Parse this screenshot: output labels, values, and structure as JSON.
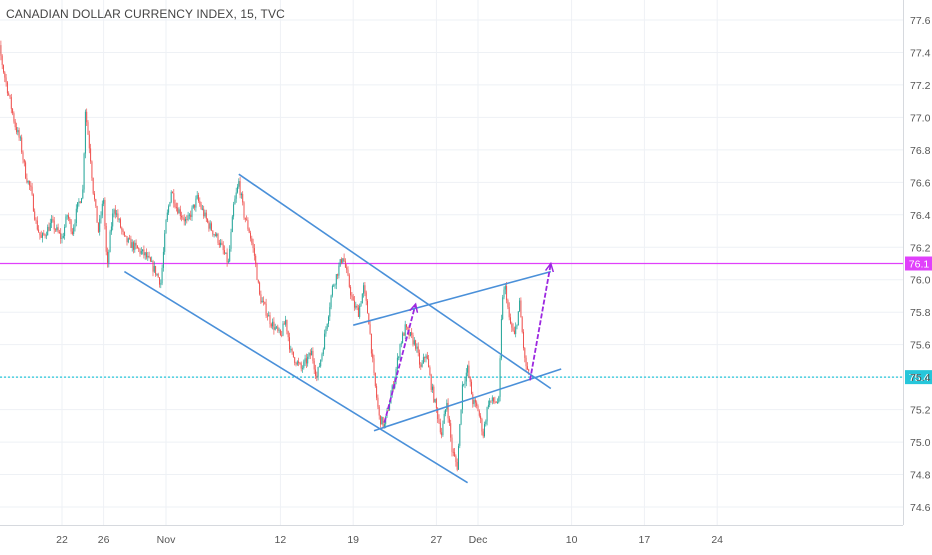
{
  "chart_data": {
    "type": "candlestick",
    "title": "CANADIAN DOLLAR CURRENCY INDEX, 15, TVC",
    "xlabel": "",
    "ylabel": "",
    "ylim": [
      74.4,
      77.7
    ],
    "grid": true,
    "x_ticks": [
      {
        "label": "22",
        "date": "2018-10-22"
      },
      {
        "label": "26",
        "date": "2018-10-26"
      },
      {
        "label": "Nov",
        "date": "2018-11-01"
      },
      {
        "label": "12",
        "date": "2018-11-12"
      },
      {
        "label": "19",
        "date": "2018-11-19"
      },
      {
        "label": "27",
        "date": "2018-11-27"
      },
      {
        "label": "Dec",
        "date": "2018-12-01"
      },
      {
        "label": "10",
        "date": "2018-12-10"
      },
      {
        "label": "17",
        "date": "2018-12-17"
      },
      {
        "label": "24",
        "date": "2018-12-24"
      }
    ],
    "y_ticks": [
      74.6,
      74.8,
      75.0,
      75.2,
      75.4,
      75.6,
      75.8,
      76.0,
      76.2,
      76.4,
      76.6,
      76.8,
      77.0,
      77.2,
      77.4,
      77.6
    ],
    "price_path": [
      [
        "2018-10-15",
        77.0
      ],
      [
        "2018-10-15 16:00",
        77.3
      ],
      [
        "2018-10-16",
        77.42
      ],
      [
        "2018-10-16 08:00",
        77.3
      ],
      [
        "2018-10-17",
        77.1
      ],
      [
        "2018-10-17 12:00",
        76.95
      ],
      [
        "2018-10-18",
        76.85
      ],
      [
        "2018-10-18 12:00",
        76.65
      ],
      [
        "2018-10-19",
        76.55
      ],
      [
        "2018-10-19 12:00",
        76.35
      ],
      [
        "2018-10-20",
        76.25
      ],
      [
        "2018-10-21",
        76.35
      ],
      [
        "2018-10-22",
        76.25
      ],
      [
        "2018-10-22 12:00",
        76.4
      ],
      [
        "2018-10-23",
        76.3
      ],
      [
        "2018-10-23 12:00",
        76.45
      ],
      [
        "2018-10-24",
        76.55
      ],
      [
        "2018-10-24 06:00",
        77.05
      ],
      [
        "2018-10-24 18:00",
        76.75
      ],
      [
        "2018-10-25",
        76.55
      ],
      [
        "2018-10-25 12:00",
        76.3
      ],
      [
        "2018-10-26",
        76.5
      ],
      [
        "2018-10-26 08:00",
        76.05
      ],
      [
        "2018-10-26 16:00",
        76.3
      ],
      [
        "2018-10-27",
        76.45
      ],
      [
        "2018-10-28",
        76.25
      ],
      [
        "2018-10-29",
        76.2
      ],
      [
        "2018-10-30",
        76.15
      ],
      [
        "2018-10-31",
        76.05
      ],
      [
        "2018-10-31 12:00",
        75.98
      ],
      [
        "2018-11-01",
        76.35
      ],
      [
        "2018-11-01 12:00",
        76.55
      ],
      [
        "2018-11-02",
        76.45
      ],
      [
        "2018-11-03",
        76.35
      ],
      [
        "2018-11-04",
        76.5
      ],
      [
        "2018-11-05",
        76.35
      ],
      [
        "2018-11-06",
        76.25
      ],
      [
        "2018-11-07",
        76.1
      ],
      [
        "2018-11-07 12:00",
        76.45
      ],
      [
        "2018-11-08",
        76.6
      ],
      [
        "2018-11-08 12:00",
        76.4
      ],
      [
        "2018-11-09",
        76.3
      ],
      [
        "2018-11-09 12:00",
        76.15
      ],
      [
        "2018-11-10",
        75.9
      ],
      [
        "2018-11-11",
        75.75
      ],
      [
        "2018-11-12",
        75.65
      ],
      [
        "2018-11-12 12:00",
        75.75
      ],
      [
        "2018-11-13",
        75.55
      ],
      [
        "2018-11-14",
        75.45
      ],
      [
        "2018-11-15",
        75.55
      ],
      [
        "2018-11-15 12:00",
        75.4
      ],
      [
        "2018-11-16",
        75.55
      ],
      [
        "2018-11-16 12:00",
        75.75
      ],
      [
        "2018-11-17",
        75.95
      ],
      [
        "2018-11-18",
        76.15
      ],
      [
        "2018-11-18 12:00",
        76.0
      ],
      [
        "2018-11-19",
        75.85
      ],
      [
        "2018-11-19 12:00",
        75.8
      ],
      [
        "2018-11-20",
        75.95
      ],
      [
        "2018-11-20 12:00",
        75.75
      ],
      [
        "2018-11-21",
        75.4
      ],
      [
        "2018-11-21 12:00",
        75.15
      ],
      [
        "2018-11-22",
        75.1
      ],
      [
        "2018-11-22 12:00",
        75.25
      ],
      [
        "2018-11-23",
        75.4
      ],
      [
        "2018-11-23 12:00",
        75.6
      ],
      [
        "2018-11-24",
        75.7
      ],
      [
        "2018-11-25",
        75.6
      ],
      [
        "2018-11-25 12:00",
        75.45
      ],
      [
        "2018-11-26",
        75.55
      ],
      [
        "2018-11-26 12:00",
        75.35
      ],
      [
        "2018-11-27",
        75.2
      ],
      [
        "2018-11-27 12:00",
        75.05
      ],
      [
        "2018-11-28",
        75.25
      ],
      [
        "2018-11-28 12:00",
        74.95
      ],
      [
        "2018-11-29",
        74.85
      ],
      [
        "2018-11-29 12:00",
        75.35
      ],
      [
        "2018-11-30",
        75.45
      ],
      [
        "2018-11-30 12:00",
        75.25
      ],
      [
        "2018-12-01",
        75.2
      ],
      [
        "2018-12-01 12:00",
        75.05
      ],
      [
        "2018-12-02",
        75.25
      ],
      [
        "2018-12-03",
        75.25
      ],
      [
        "2018-12-03 08:00",
        75.9
      ],
      [
        "2018-12-03 16:00",
        75.95
      ],
      [
        "2018-12-04",
        75.75
      ],
      [
        "2018-12-04 12:00",
        75.65
      ],
      [
        "2018-12-05",
        75.85
      ],
      [
        "2018-12-05 12:00",
        75.5
      ],
      [
        "2018-12-06",
        75.38
      ]
    ],
    "horizontal_lines": [
      {
        "price": 76.1,
        "label": "76.1",
        "color": "#e040fb",
        "style": "solid"
      },
      {
        "price": 75.4,
        "label": "75.4",
        "color": "#26c6da",
        "style": "dotted"
      }
    ],
    "trend_lines": [
      {
        "from": [
          "2018-11-08",
          76.65
        ],
        "to": [
          "2018-12-08",
          75.33
        ],
        "color": "#4a90d9"
      },
      {
        "from": [
          "2018-10-28",
          76.05
        ],
        "to": [
          "2018-11-30",
          74.75
        ],
        "color": "#4a90d9"
      },
      {
        "from": [
          "2018-11-19",
          75.72
        ],
        "to": [
          "2018-12-08",
          76.05
        ],
        "color": "#4a90d9"
      },
      {
        "from": [
          "2018-11-21",
          75.07
        ],
        "to": [
          "2018-12-09",
          75.45
        ],
        "color": "#4a90d9"
      }
    ],
    "arrows": [
      {
        "from": [
          "2018-11-22",
          75.12
        ],
        "to": [
          "2018-11-25",
          75.85
        ],
        "color": "#9c27e0"
      },
      {
        "from": [
          "2018-12-06",
          75.38
        ],
        "to": [
          "2018-12-08",
          76.1
        ],
        "color": "#9c27e0"
      }
    ],
    "colors": {
      "up": "#26a69a",
      "down": "#ef5350",
      "grid": "#eef1f5",
      "axis_text": "#555555"
    }
  }
}
